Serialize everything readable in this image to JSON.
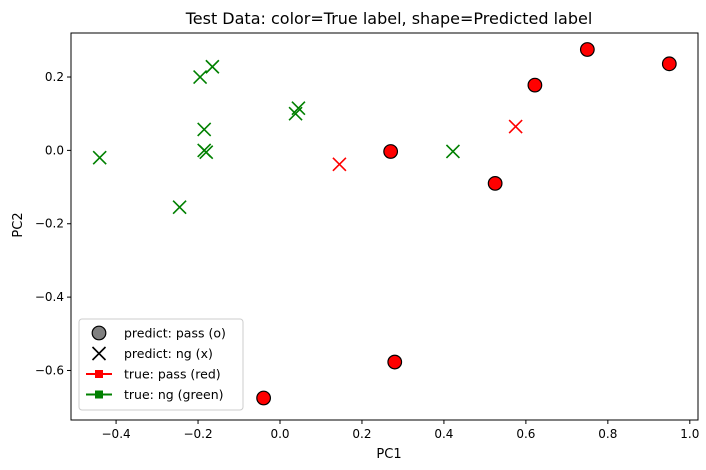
{
  "chart_data": {
    "type": "scatter",
    "title": "Test Data: color=True label, shape=Predicted label",
    "xlabel": "PC1",
    "ylabel": "PC2",
    "xlim": [
      -0.51,
      1.02
    ],
    "ylim": [
      -0.735,
      0.32
    ],
    "xticks": [
      -0.4,
      -0.2,
      0.0,
      0.2,
      0.4,
      0.6,
      0.8,
      1.0
    ],
    "xtick_labels": [
      "−0.4",
      "−0.2",
      "0.0",
      "0.2",
      "0.4",
      "0.6",
      "0.8",
      "1.0"
    ],
    "yticks": [
      -0.6,
      -0.4,
      -0.2,
      0.0,
      0.2
    ],
    "ytick_labels": [
      "−0.6",
      "−0.4",
      "−0.2",
      "0.0",
      "0.2"
    ],
    "grid": false,
    "legend_position": "lower-left",
    "colors": {
      "red": "#ff0000",
      "green": "#008000",
      "gray": "#808080"
    },
    "legend": [
      {
        "label": "predict: pass (o)",
        "kind": "marker-circle",
        "color": "#808080"
      },
      {
        "label": "predict: ng (x)",
        "kind": "marker-x",
        "color": "#000000"
      },
      {
        "label": "true: pass (red)",
        "kind": "line-square",
        "color": "#ff0000"
      },
      {
        "label": "true: ng (green)",
        "kind": "line-square",
        "color": "#008000"
      }
    ],
    "points": [
      {
        "x": 0.27,
        "y": -0.003,
        "true_label": "pass",
        "predicted": "pass"
      },
      {
        "x": 0.525,
        "y": -0.09,
        "true_label": "pass",
        "predicted": "pass"
      },
      {
        "x": 0.622,
        "y": 0.178,
        "true_label": "pass",
        "predicted": "pass"
      },
      {
        "x": 0.75,
        "y": 0.275,
        "true_label": "pass",
        "predicted": "pass"
      },
      {
        "x": 0.95,
        "y": 0.236,
        "true_label": "pass",
        "predicted": "pass"
      },
      {
        "x": 0.28,
        "y": -0.577,
        "true_label": "pass",
        "predicted": "pass"
      },
      {
        "x": -0.04,
        "y": -0.675,
        "true_label": "pass",
        "predicted": "pass"
      },
      {
        "x": 0.145,
        "y": -0.038,
        "true_label": "pass",
        "predicted": "ng"
      },
      {
        "x": 0.575,
        "y": 0.065,
        "true_label": "pass",
        "predicted": "ng"
      },
      {
        "x": -0.44,
        "y": -0.02,
        "true_label": "ng",
        "predicted": "ng"
      },
      {
        "x": -0.245,
        "y": -0.155,
        "true_label": "ng",
        "predicted": "ng"
      },
      {
        "x": -0.195,
        "y": 0.2,
        "true_label": "ng",
        "predicted": "ng"
      },
      {
        "x": -0.165,
        "y": 0.228,
        "true_label": "ng",
        "predicted": "ng"
      },
      {
        "x": -0.185,
        "y": 0.057,
        "true_label": "ng",
        "predicted": "ng"
      },
      {
        "x": -0.185,
        "y": 0.0,
        "true_label": "ng",
        "predicted": "ng"
      },
      {
        "x": -0.18,
        "y": -0.005,
        "true_label": "ng",
        "predicted": "ng"
      },
      {
        "x": 0.038,
        "y": 0.1,
        "true_label": "ng",
        "predicted": "ng"
      },
      {
        "x": 0.045,
        "y": 0.115,
        "true_label": "ng",
        "predicted": "ng"
      },
      {
        "x": 0.422,
        "y": -0.003,
        "true_label": "ng",
        "predicted": "ng"
      }
    ]
  }
}
